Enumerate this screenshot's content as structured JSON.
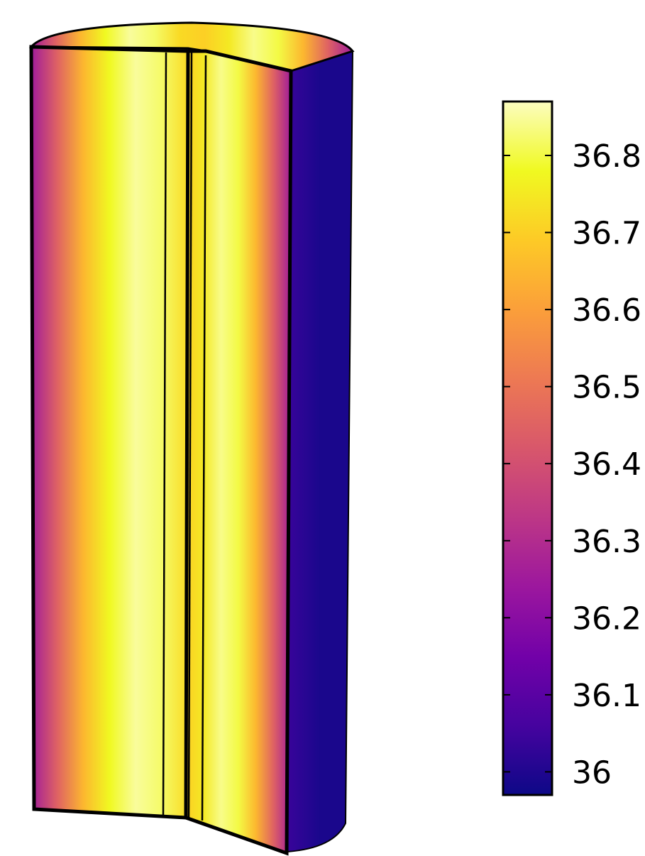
{
  "chart_data": {
    "type": "heatmap",
    "title": "",
    "xlabel": "",
    "ylabel": "",
    "colormap": "plasma",
    "colorbar": {
      "range": [
        35.97,
        36.87
      ],
      "ticks": [
        36,
        36.1,
        36.2,
        36.3,
        36.4,
        36.5,
        36.6,
        36.7,
        36.8
      ],
      "tick_labels": [
        "36",
        "36.1",
        "36.2",
        "36.3",
        "36.4",
        "36.5",
        "36.6",
        "36.7",
        "36.8"
      ],
      "placement": "right"
    },
    "field": {
      "min": 35.97,
      "max": 36.87,
      "cut_faces": [
        {
          "name": "left cut face",
          "profile": [
            36.25,
            36.45,
            36.65,
            36.78,
            36.85,
            36.82,
            36.72
          ]
        },
        {
          "name": "right cut face",
          "profile": [
            36.7,
            36.75,
            36.84,
            36.8,
            36.65,
            36.45,
            36.25
          ]
        }
      ],
      "outer_surface": 35.99
    }
  },
  "colors": {
    "plasma_stops": [
      "#0d0887",
      "#46039f",
      "#7201a8",
      "#9c179e",
      "#bd3786",
      "#d8576b",
      "#ed7953",
      "#fb9f3a",
      "#fdca26",
      "#f0f921",
      "#fcfdbf"
    ],
    "background": "#ffffff",
    "outline": "#000000"
  }
}
